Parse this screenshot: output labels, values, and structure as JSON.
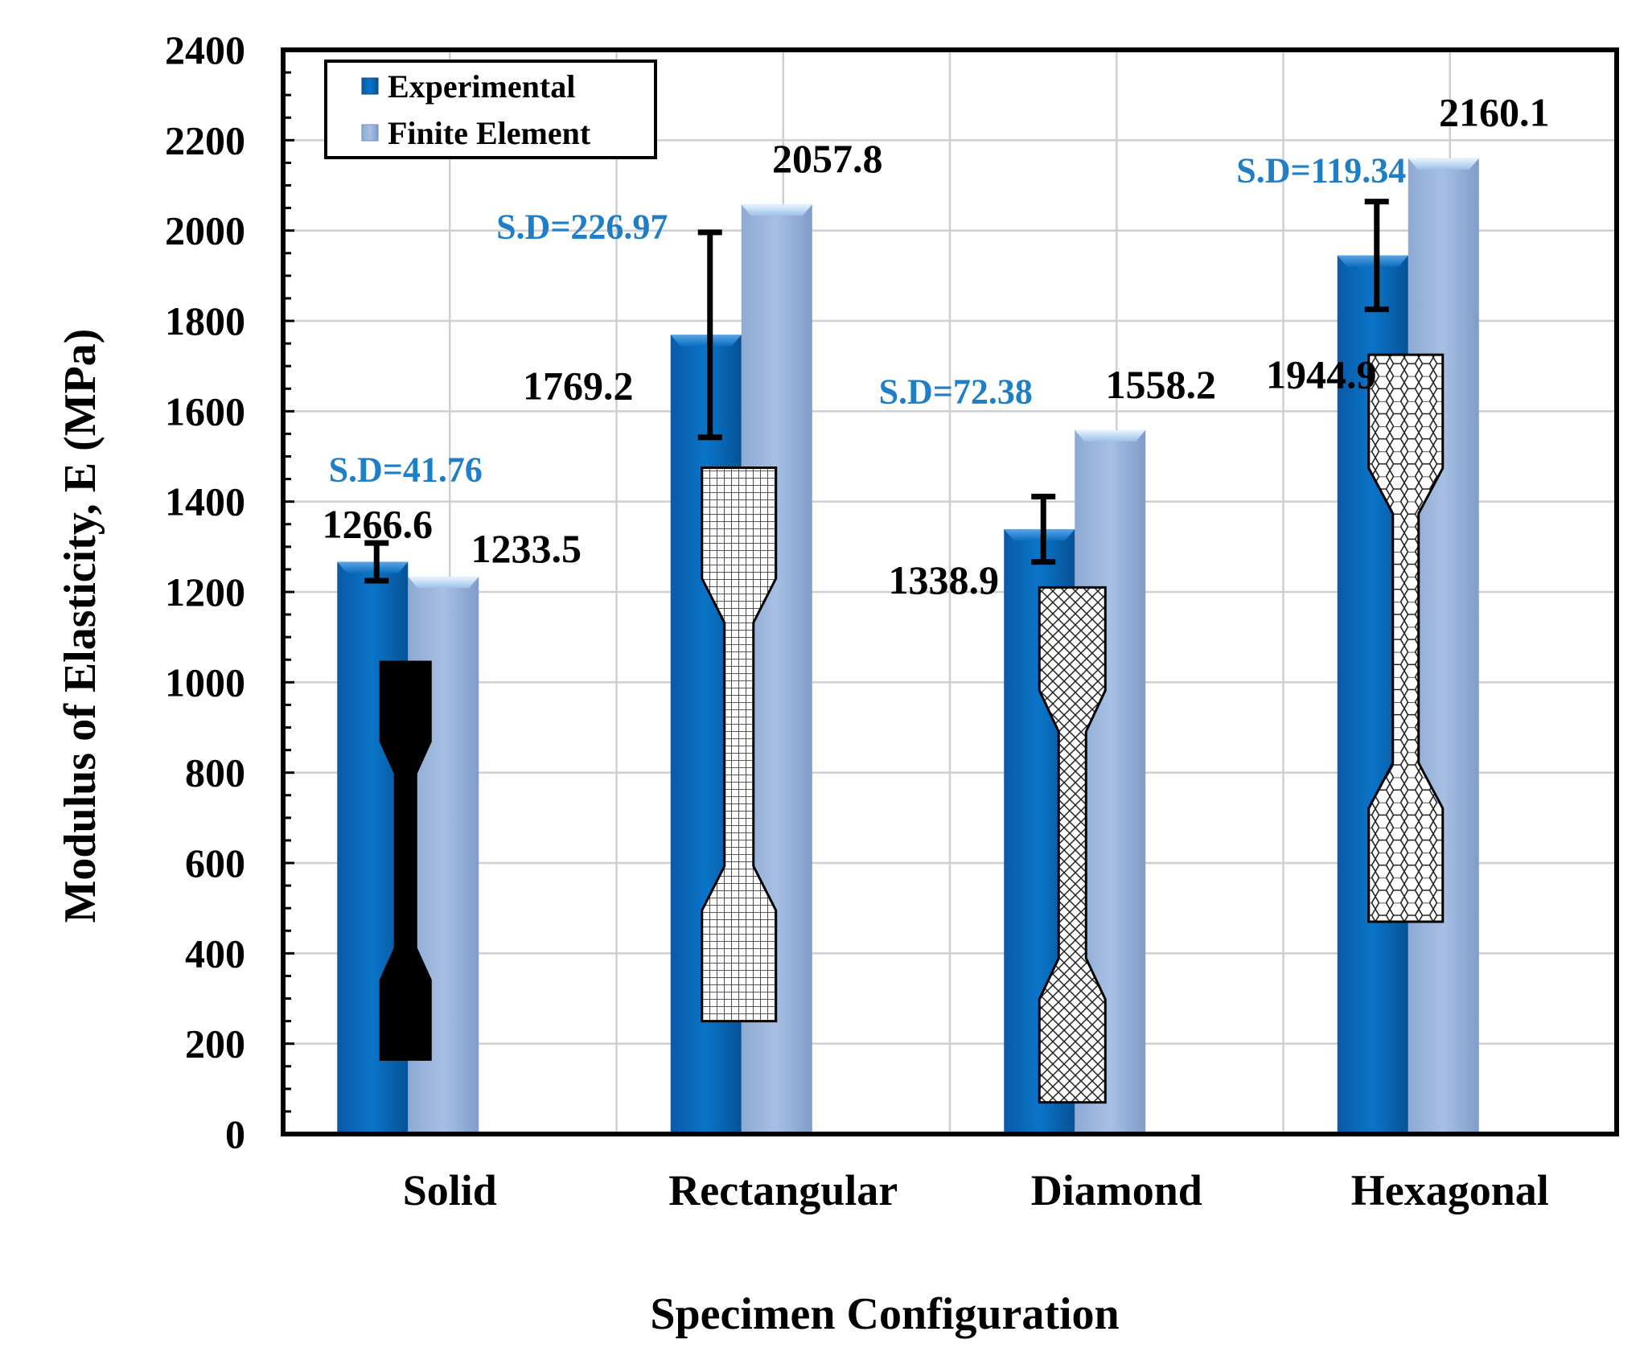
{
  "chart_data": {
    "type": "bar",
    "title": "",
    "xlabel": "Specimen Configuration",
    "ylabel": "Modulus of Elasticity, E (MPa)",
    "ylim": [
      0,
      2400
    ],
    "ytick_step": 200,
    "yticks": [
      "0",
      "200",
      "400",
      "600",
      "800",
      "1000",
      "1200",
      "1400",
      "1600",
      "1800",
      "2000",
      "2200",
      "2400"
    ],
    "grid": true,
    "legend_position": "top-left",
    "categories": [
      "Solid",
      "Rectangular",
      "Diamond",
      "Hexagonal"
    ],
    "series": [
      {
        "name": "Experimental",
        "values": [
          1266.6,
          1769.2,
          1338.9,
          1944.9
        ],
        "labels": [
          "1266.6",
          "1769.2",
          "1338.9",
          "1944.9"
        ],
        "color": "#0a6fc2",
        "error": [
          41.76,
          226.97,
          72.38,
          119.34
        ]
      },
      {
        "name": "Finite Element",
        "values": [
          1233.5,
          2057.8,
          1558.2,
          2160.1
        ],
        "labels": [
          "1233.5",
          "2057.8",
          "1558.2",
          "2160.1"
        ],
        "color": "#9bb6db"
      }
    ],
    "sd_labels": [
      "S.D=41.76",
      "S.D=226.97",
      "S.D=72.38",
      "S.D=119.34"
    ],
    "sd_color": "#1f7fc6",
    "specimen_patterns": [
      "solid",
      "grid",
      "diamond",
      "hexagon"
    ]
  }
}
